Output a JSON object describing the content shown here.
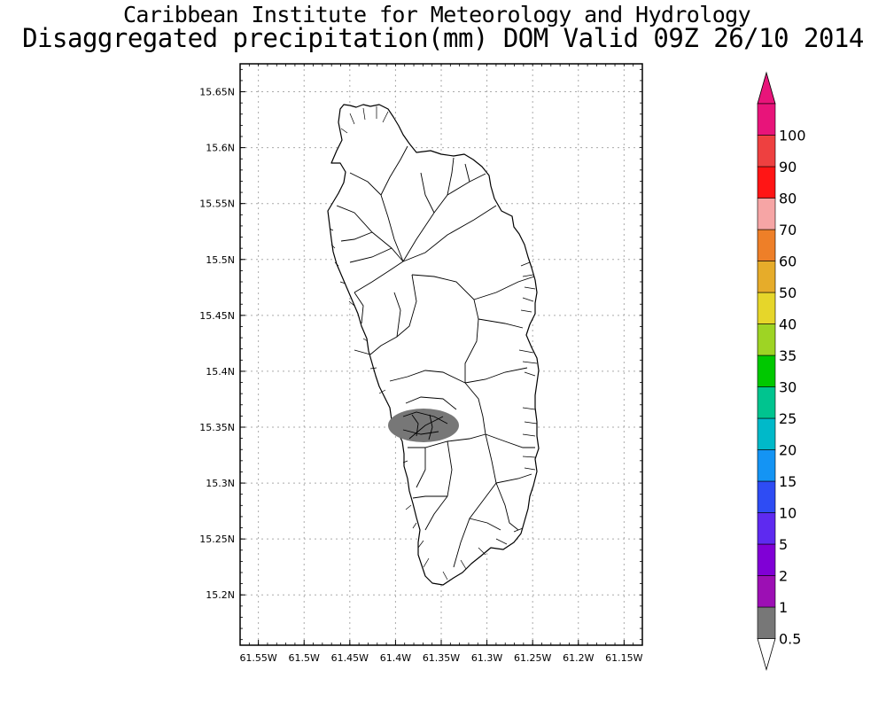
{
  "title": {
    "line1": "Caribbean Institute for Meteorology and Hydrology",
    "line2": "Disaggregated precipitation(mm) DOM Valid 09Z 26/10 2014"
  },
  "map": {
    "region": "Dominica",
    "lon_range": [
      -61.57,
      -61.13
    ],
    "lat_range": [
      15.155,
      15.675
    ],
    "lon_ticks": [
      "61.55W",
      "61.5W",
      "61.45W",
      "61.4W",
      "61.35W",
      "61.3W",
      "61.25W",
      "61.2W",
      "61.15W"
    ],
    "lon_values": [
      -61.55,
      -61.5,
      -61.45,
      -61.4,
      -61.35,
      -61.3,
      -61.25,
      -61.2,
      -61.15
    ],
    "lat_ticks": [
      "15.65N",
      "15.6N",
      "15.55N",
      "15.5N",
      "15.45N",
      "15.4N",
      "15.35N",
      "15.3N",
      "15.25N",
      "15.2N"
    ],
    "lat_values": [
      15.65,
      15.6,
      15.55,
      15.5,
      15.45,
      15.4,
      15.35,
      15.3,
      15.25,
      15.2
    ],
    "grid": true,
    "precip_area": {
      "category": "0.5-1",
      "color": "#777777"
    }
  },
  "colorbar": {
    "labels": [
      "0.5",
      "1",
      "2",
      "5",
      "10",
      "15",
      "20",
      "25",
      "30",
      "35",
      "40",
      "50",
      "60",
      "70",
      "80",
      "90",
      "100"
    ],
    "colors": [
      "#777777",
      "#9c0fb4",
      "#8000d6",
      "#5e2af0",
      "#2e4cf4",
      "#1494f4",
      "#00b9c9",
      "#00c48f",
      "#00c800",
      "#9ed424",
      "#e6d62a",
      "#e6ac2a",
      "#ee7f28",
      "#f6a5a5",
      "#ff1515",
      "#ee4040",
      "#e8147a"
    ],
    "lower_end_color": "#ffffff",
    "upper_end_color": "#e8147a"
  }
}
